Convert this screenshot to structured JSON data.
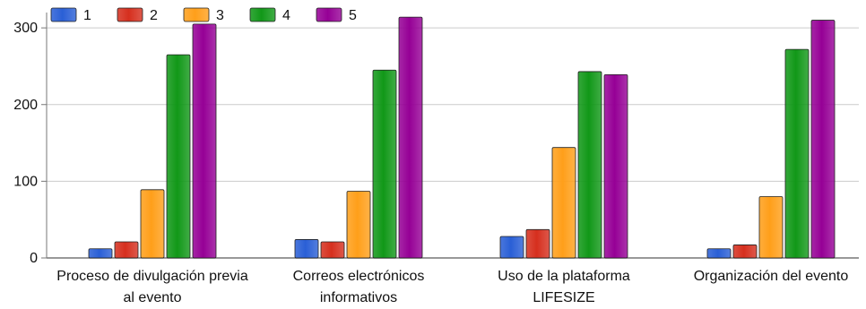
{
  "chart_data": {
    "type": "bar",
    "categories": [
      [
        "Proceso de divulgación previa",
        "al evento"
      ],
      [
        "Correos electrónicos",
        "informativos"
      ],
      [
        "Uso de la plataforma",
        "LIFESIZE"
      ],
      [
        "Organización del evento"
      ]
    ],
    "series": [
      {
        "name": "1",
        "color": "#2a5fd6",
        "values": [
          12,
          24,
          28,
          12
        ]
      },
      {
        "name": "2",
        "color": "#d62f1e",
        "values": [
          21,
          21,
          37,
          17
        ]
      },
      {
        "name": "3",
        "color": "#ff9f1a",
        "values": [
          89,
          87,
          144,
          80
        ]
      },
      {
        "name": "4",
        "color": "#119818",
        "values": [
          265,
          245,
          243,
          272
        ]
      },
      {
        "name": "5",
        "color": "#960096",
        "values": [
          305,
          314,
          239,
          310
        ]
      }
    ],
    "yticks": [
      "0",
      "100",
      "200",
      "300"
    ],
    "ylim": [
      0,
      320
    ],
    "grid": true,
    "legend_position": "top-left",
    "title": "",
    "xlabel": "",
    "ylabel": ""
  }
}
